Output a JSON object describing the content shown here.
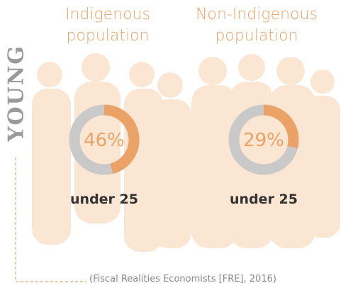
{
  "side_label": "YOUNG",
  "source": "(Fiscal Realities Economists [FRE], 2016)",
  "chart_data": [
    {
      "type": "donut",
      "title": "Indigenous population",
      "values": [
        46
      ],
      "value_labels": [
        "46%"
      ],
      "subtitle": "under 25",
      "color": "#eba266",
      "track_color": "#c9c9c9"
    },
    {
      "type": "donut",
      "title": "Non-Indigenous population",
      "values": [
        29
      ],
      "value_labels": [
        "29%"
      ],
      "subtitle": "under 25",
      "color": "#eba266",
      "track_color": "#c9c9c9"
    }
  ]
}
